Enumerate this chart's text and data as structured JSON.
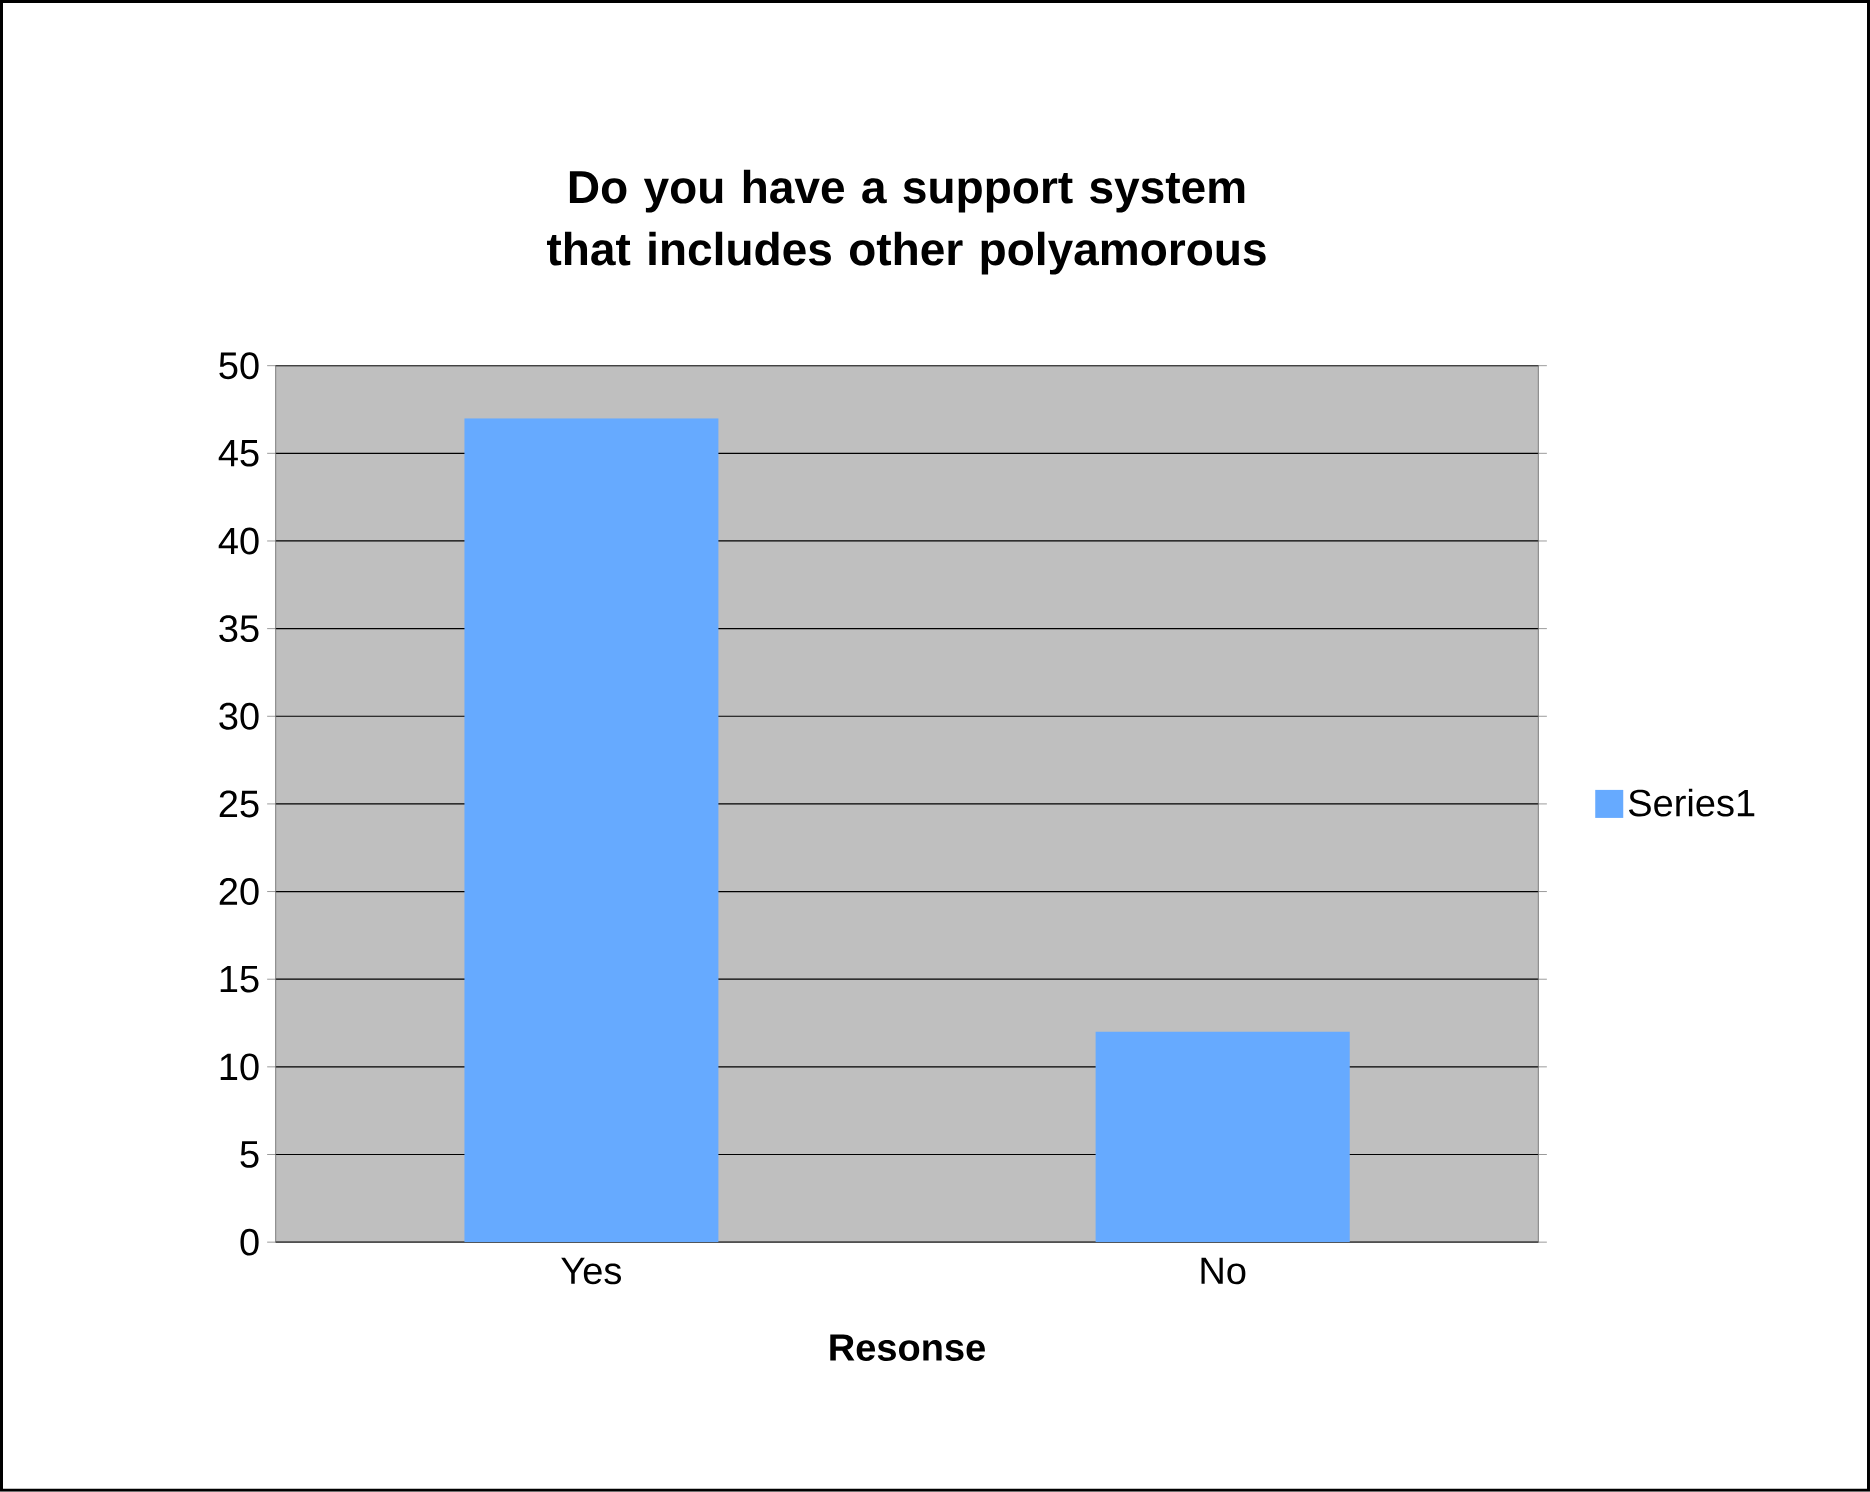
{
  "chart_data": {
    "type": "bar",
    "title": "Do you have a support system that includes other polyamorous",
    "xlabel": "Resonse",
    "categories": [
      "Yes",
      "No"
    ],
    "series": [
      {
        "name": "Series1",
        "color": "#66aaff",
        "values": [
          47,
          12
        ]
      }
    ],
    "ylim": [
      0,
      50
    ],
    "yticks": [
      0,
      5,
      10,
      15,
      20,
      25,
      30,
      35,
      40,
      45,
      50
    ],
    "grid": "y",
    "legend": "right"
  }
}
